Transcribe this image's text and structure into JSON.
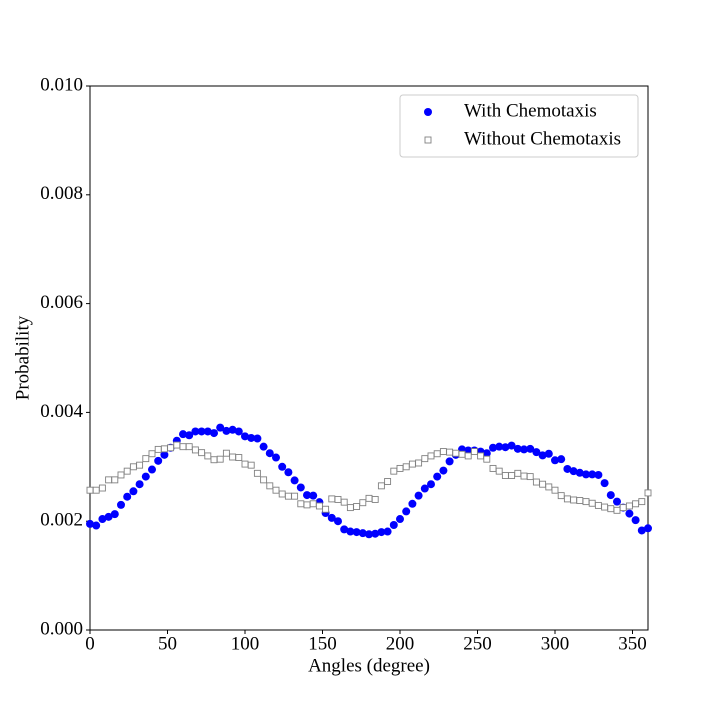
{
  "chart_data": {
    "type": "scatter",
    "x_label": "Angles (degree)",
    "y_label": "Probability",
    "x": [
      0,
      4,
      8,
      12,
      16,
      20,
      24,
      28,
      32,
      36,
      40,
      44,
      48,
      52,
      56,
      60,
      64,
      68,
      72,
      76,
      80,
      84,
      88,
      92,
      96,
      100,
      104,
      108,
      112,
      116,
      120,
      124,
      128,
      132,
      136,
      140,
      144,
      148,
      152,
      156,
      160,
      164,
      168,
      172,
      176,
      180,
      184,
      188,
      192,
      196,
      200,
      204,
      208,
      212,
      216,
      220,
      224,
      228,
      232,
      236,
      240,
      244,
      248,
      252,
      256,
      260,
      264,
      268,
      272,
      276,
      280,
      284,
      288,
      292,
      296,
      300,
      304,
      308,
      312,
      316,
      320,
      324,
      328,
      332,
      336,
      340,
      344,
      348,
      352,
      356,
      360
    ],
    "series": [
      {
        "name": "With Chemotaxis",
        "color": "#0000ff",
        "marker": "circle",
        "values": [
          0.00195,
          0.00192,
          0.00204,
          0.00208,
          0.00213,
          0.0023,
          0.00245,
          0.00255,
          0.00268,
          0.00282,
          0.00295,
          0.00311,
          0.00322,
          0.00335,
          0.00348,
          0.0036,
          0.00358,
          0.00365,
          0.00365,
          0.00365,
          0.00362,
          0.00372,
          0.00366,
          0.00368,
          0.00365,
          0.00356,
          0.00353,
          0.00352,
          0.00337,
          0.00325,
          0.00317,
          0.003,
          0.0029,
          0.00275,
          0.00262,
          0.00248,
          0.00247,
          0.00235,
          0.00215,
          0.00206,
          0.002,
          0.00185,
          0.00181,
          0.0018,
          0.00178,
          0.00176,
          0.00177,
          0.0018,
          0.00181,
          0.00193,
          0.00204,
          0.00218,
          0.00232,
          0.00247,
          0.0026,
          0.00268,
          0.00282,
          0.00293,
          0.0031,
          0.00322,
          0.00332,
          0.0033,
          0.0033,
          0.00328,
          0.00325,
          0.00335,
          0.00337,
          0.00336,
          0.00339,
          0.00333,
          0.00332,
          0.00333,
          0.00327,
          0.00321,
          0.00324,
          0.00312,
          0.00314,
          0.00296,
          0.00292,
          0.00289,
          0.00286,
          0.00286,
          0.00285,
          0.0027,
          0.00248,
          0.00236,
          0.00225,
          0.00214,
          0.00202,
          0.00183,
          0.00187
        ]
      },
      {
        "name": "Without Chemotaxis",
        "color": "#808080",
        "marker": "square",
        "values": [
          0.00257,
          0.00257,
          0.00261,
          0.00276,
          0.00276,
          0.00285,
          0.00292,
          0.003,
          0.00303,
          0.00315,
          0.00324,
          0.00332,
          0.00333,
          0.00335,
          0.0034,
          0.00337,
          0.00337,
          0.00331,
          0.00326,
          0.0032,
          0.00313,
          0.00314,
          0.00325,
          0.00318,
          0.00317,
          0.00305,
          0.00303,
          0.00288,
          0.00276,
          0.00265,
          0.00257,
          0.0025,
          0.00246,
          0.00246,
          0.00232,
          0.0023,
          0.00232,
          0.00228,
          0.00222,
          0.00241,
          0.0024,
          0.00235,
          0.00225,
          0.00227,
          0.00234,
          0.00242,
          0.0024,
          0.00265,
          0.00273,
          0.00292,
          0.00297,
          0.003,
          0.00305,
          0.00307,
          0.00315,
          0.0032,
          0.00324,
          0.00328,
          0.00327,
          0.00325,
          0.00323,
          0.0032,
          0.00328,
          0.0032,
          0.00314,
          0.00297,
          0.00292,
          0.00284,
          0.00284,
          0.00288,
          0.00283,
          0.00282,
          0.00272,
          0.00268,
          0.00263,
          0.00257,
          0.00247,
          0.00241,
          0.00239,
          0.00238,
          0.00236,
          0.00233,
          0.00229,
          0.00226,
          0.00223,
          0.0022,
          0.00225,
          0.00228,
          0.00232,
          0.00236,
          0.00252
        ]
      }
    ],
    "xlim": [
      0,
      360
    ],
    "xticks": [
      0,
      50,
      100,
      150,
      200,
      250,
      300,
      350
    ],
    "ylim": [
      0,
      0.01
    ],
    "yticks": [
      {
        "value": 0,
        "label": "0.000"
      },
      {
        "value": 0.002,
        "label": "0.002"
      },
      {
        "value": 0.004,
        "label": "0.004"
      },
      {
        "value": 0.006,
        "label": "0.006"
      },
      {
        "value": 0.008,
        "label": "0.008"
      },
      {
        "value": 0.01,
        "label": "0.010"
      }
    ],
    "grid": false,
    "legend": "upper right"
  }
}
